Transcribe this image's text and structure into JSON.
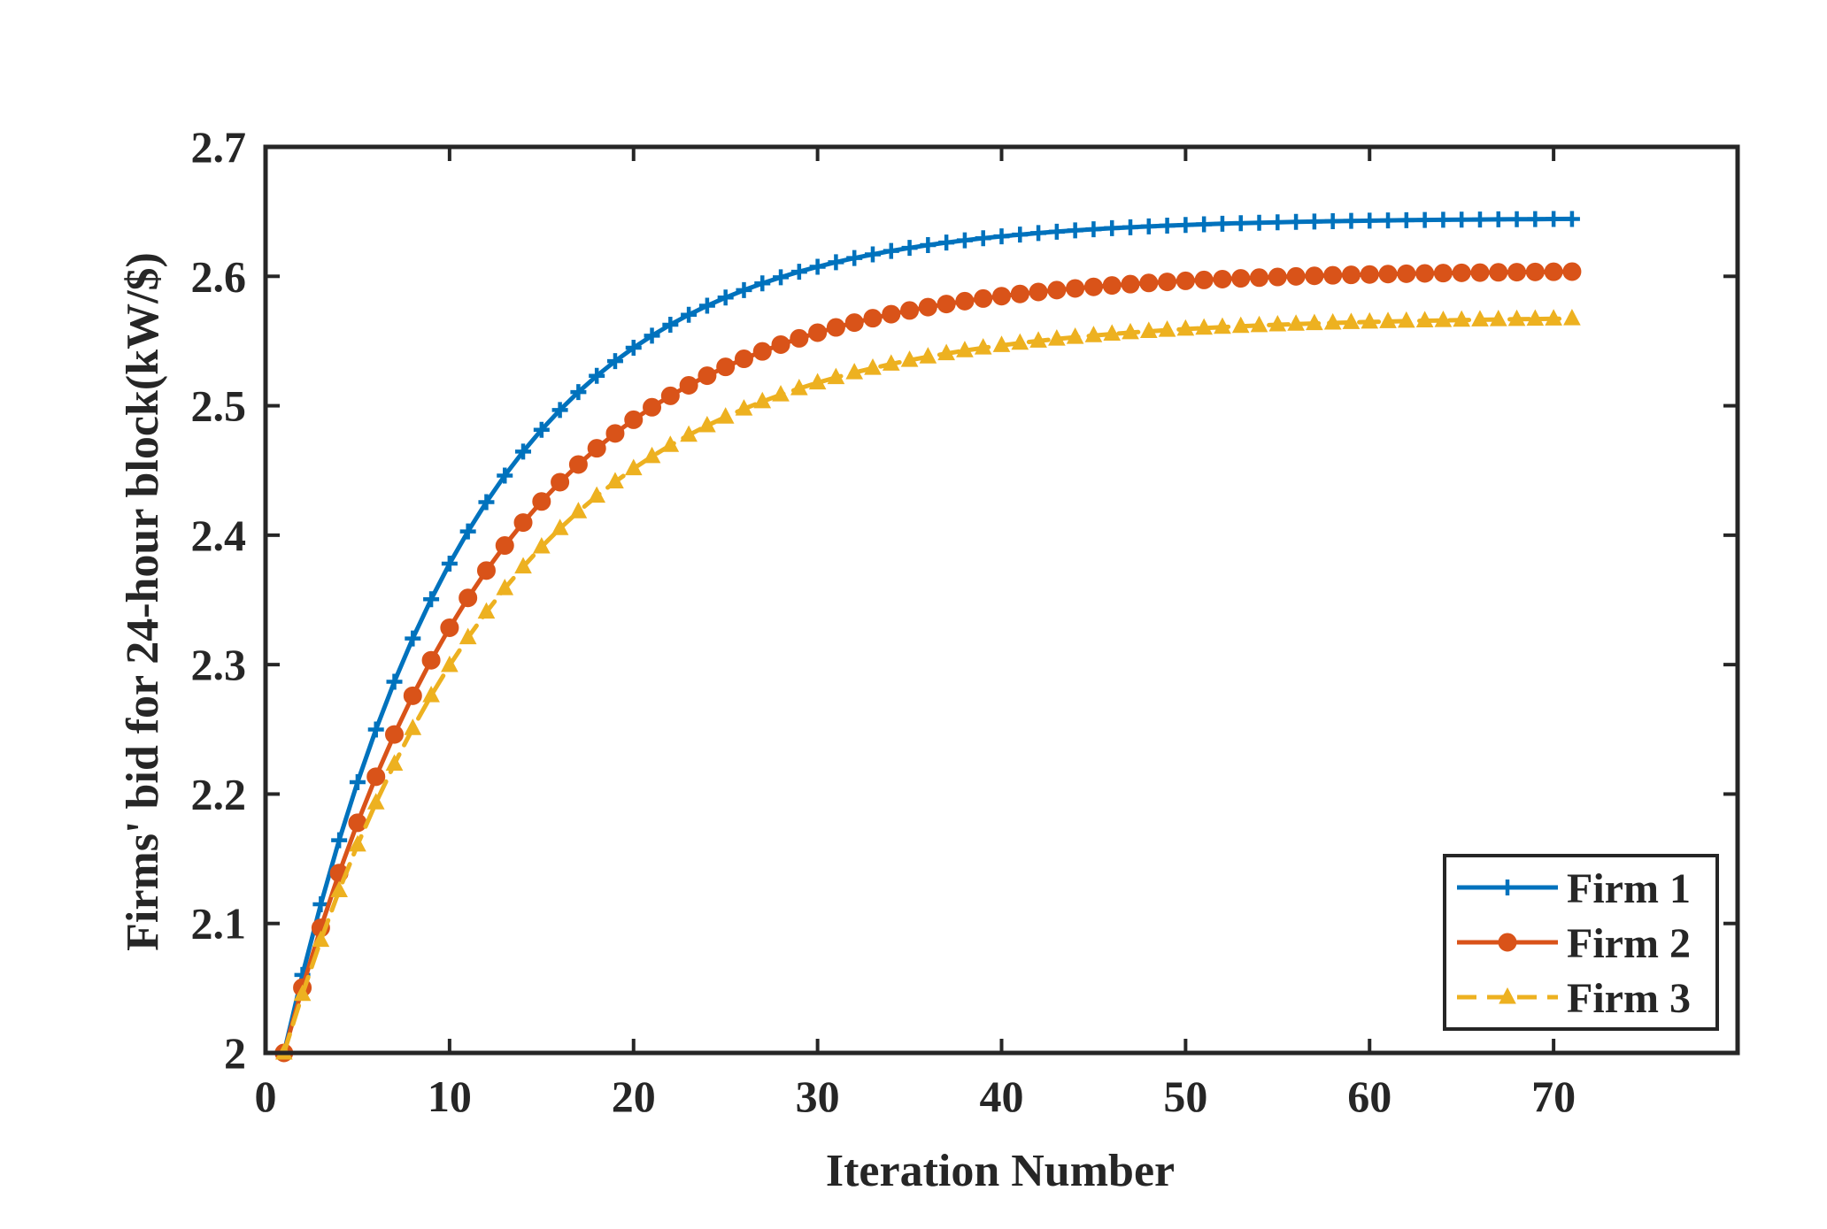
{
  "chart_data": {
    "type": "line",
    "title": "",
    "xlabel": "Iteration Number",
    "ylabel": "Firms' bid for 24-hour block(kW/$)",
    "xlim": [
      0,
      80
    ],
    "ylim": [
      2.0,
      2.7
    ],
    "xticks": [
      0,
      10,
      20,
      30,
      40,
      50,
      60,
      70
    ],
    "xtick_labels": [
      "0",
      "10",
      "20",
      "30",
      "40",
      "50",
      "60",
      "70"
    ],
    "yticks": [
      2.0,
      2.1,
      2.2,
      2.3,
      2.4,
      2.5,
      2.6,
      2.7
    ],
    "ytick_labels": [
      "2",
      "2.1",
      "2.2",
      "2.3",
      "2.4",
      "2.5",
      "2.6",
      "2.7"
    ],
    "grid": false,
    "legend_position": "bottom-right",
    "x": {
      "start": 1,
      "end": 71,
      "step": 1
    },
    "series": [
      {
        "name": "Firm 1",
        "color": "#0072BD",
        "marker": "plus",
        "line_style": "solid",
        "start": 2.0,
        "final": 2.645,
        "rate": 0.098
      },
      {
        "name": "Firm 2",
        "color": "#D95319",
        "marker": "circle",
        "line_style": "solid",
        "start": 2.0,
        "final": 2.605,
        "rate": 0.087
      },
      {
        "name": "Firm 3",
        "color": "#EDB120",
        "marker": "triangle",
        "line_style": "dashed",
        "start": 2.0,
        "final": 2.569,
        "rate": 0.083
      }
    ]
  }
}
